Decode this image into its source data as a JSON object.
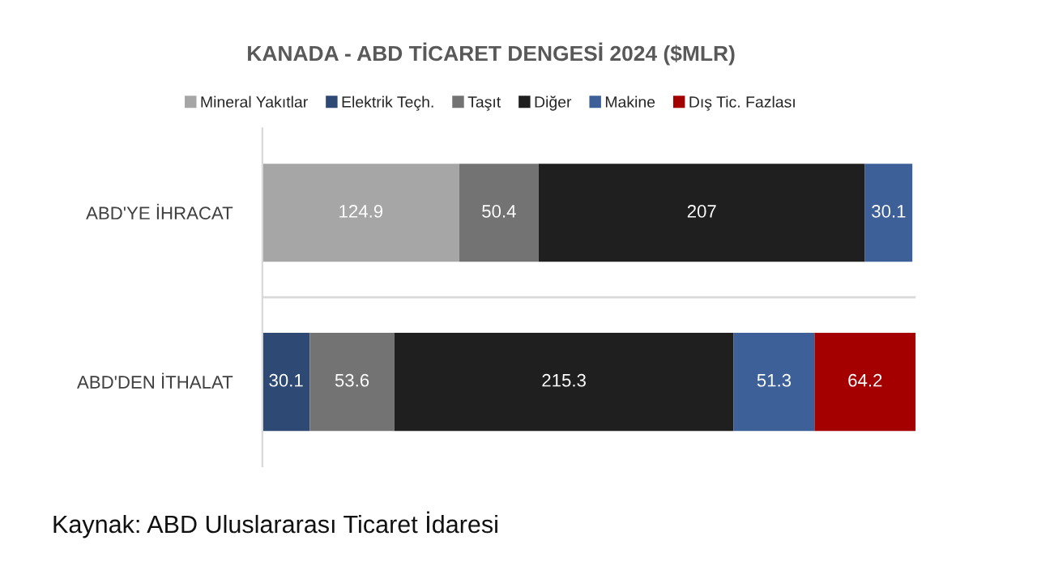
{
  "chart_data": {
    "type": "bar",
    "orientation": "horizontal",
    "stacked": true,
    "data_labels": true,
    "grid": "y",
    "legend": "top",
    "title": "KANADA - ABD TİCARET DENGESİ 2024 ($MLR)",
    "categories": [
      "ABD'YE İHRACAT",
      "ABD'DEN İTHALAT"
    ],
    "series": [
      {
        "name": "Mineral Yakıtlar",
        "color": "#a6a6a6",
        "values": [
          124.9,
          null
        ]
      },
      {
        "name": "Elektrik Teçh.",
        "color": "#2e4a74",
        "values": [
          null,
          30.1
        ]
      },
      {
        "name": "Taşıt",
        "color": "#737373",
        "values": [
          50.4,
          53.6
        ]
      },
      {
        "name": "Diğer",
        "color": "#1f1f1f",
        "values": [
          207,
          215.3
        ]
      },
      {
        "name": "Makine",
        "color": "#3d6098",
        "values": [
          30.1,
          51.3
        ]
      },
      {
        "name": "Dış Tic. Fazlası",
        "color": "#a50000",
        "values": [
          null,
          64.2
        ]
      }
    ],
    "annotations": [
      "Kaynak: ABD Uluslararası Ticaret İdaresi"
    ]
  }
}
